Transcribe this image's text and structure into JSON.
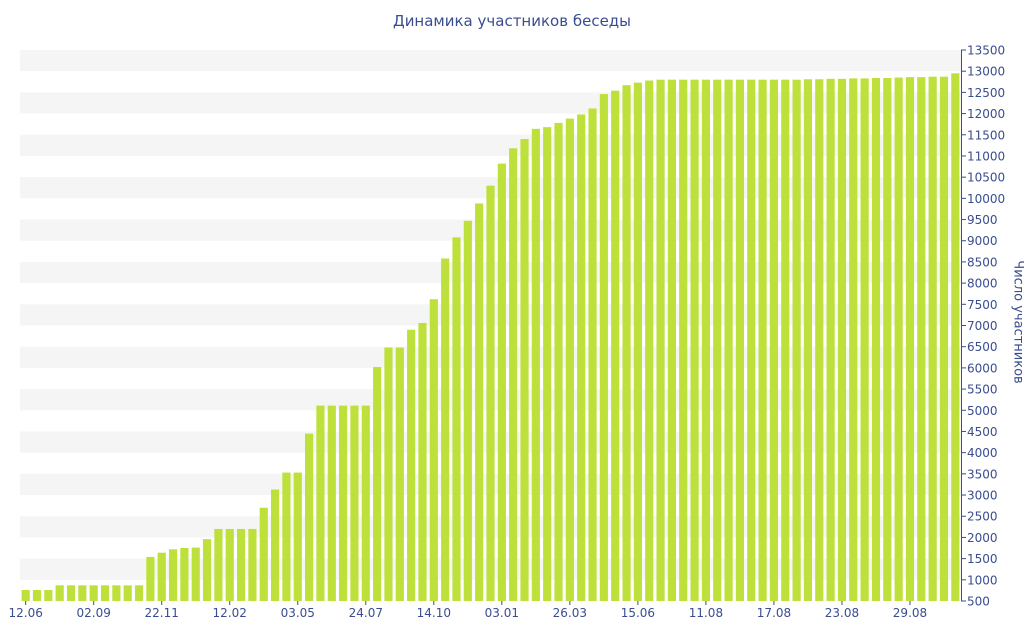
{
  "chart_data": {
    "type": "bar",
    "title": "Динамика участников беседы",
    "xlabel": "",
    "ylabel": "Число участников",
    "ylim": [
      500,
      13500
    ],
    "y_ticks": [
      500,
      1000,
      1500,
      2000,
      2500,
      3000,
      3500,
      4000,
      4500,
      5000,
      5500,
      6000,
      6500,
      7000,
      7500,
      8000,
      8500,
      9000,
      9500,
      10000,
      10500,
      11000,
      11500,
      12000,
      12500,
      13000,
      13500
    ],
    "x_tick_labels": [
      {
        "index": 0,
        "label": "12.06"
      },
      {
        "index": 6,
        "label": "02.09"
      },
      {
        "index": 12,
        "label": "22.11"
      },
      {
        "index": 18,
        "label": "12.02"
      },
      {
        "index": 24,
        "label": "03.05"
      },
      {
        "index": 30,
        "label": "24.07"
      },
      {
        "index": 36,
        "label": "14.10"
      },
      {
        "index": 42,
        "label": "03.01"
      },
      {
        "index": 48,
        "label": "26.03"
      },
      {
        "index": 54,
        "label": "15.06"
      },
      {
        "index": 60,
        "label": "11.08"
      },
      {
        "index": 66,
        "label": "17.08"
      },
      {
        "index": 72,
        "label": "23.08"
      },
      {
        "index": 78,
        "label": "29.08"
      }
    ],
    "values": [
      760,
      760,
      760,
      870,
      870,
      870,
      870,
      870,
      870,
      870,
      870,
      1540,
      1640,
      1720,
      1750,
      1760,
      1960,
      2200,
      2200,
      2200,
      2200,
      2700,
      3130,
      3530,
      3530,
      4450,
      5110,
      5110,
      5110,
      5110,
      5110,
      6020,
      6480,
      6480,
      6900,
      7060,
      7620,
      8580,
      9080,
      9470,
      9880,
      10300,
      10820,
      11180,
      11400,
      11640,
      11680,
      11780,
      11880,
      11980,
      12120,
      12460,
      12540,
      12670,
      12730,
      12780,
      12800,
      12800,
      12800,
      12800,
      12800,
      12800,
      12800,
      12800,
      12800,
      12800,
      12800,
      12800,
      12800,
      12810,
      12810,
      12820,
      12820,
      12830,
      12830,
      12840,
      12840,
      12850,
      12860,
      12860,
      12870,
      12870,
      12950
    ],
    "bar_color": "#bde03a",
    "band_color": "#f5f5f5",
    "axis_color": "#3a4d8f",
    "grid": "horizontal bands",
    "legend": "none"
  }
}
